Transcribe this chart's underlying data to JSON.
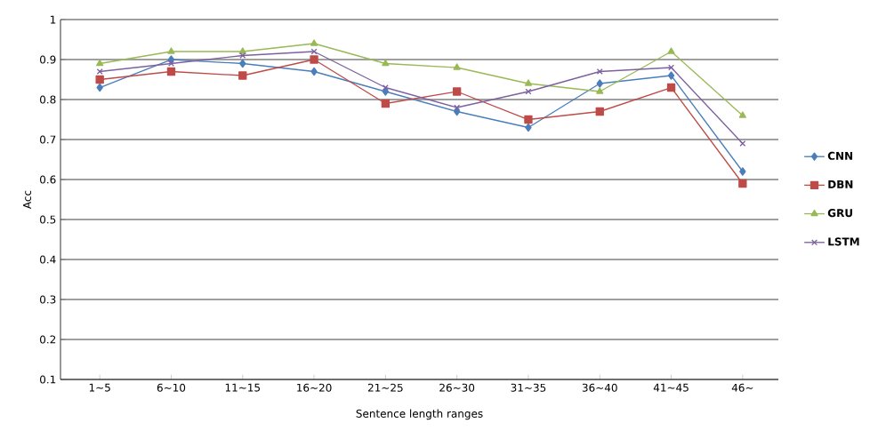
{
  "chart_data": {
    "type": "line",
    "xlabel": "Sentence length ranges",
    "ylabel": "Acc",
    "categories": [
      "1~5",
      "6~10",
      "11~15",
      "16~20",
      "21~25",
      "26~30",
      "31~35",
      "36~40",
      "41~45",
      "46~"
    ],
    "series": [
      {
        "name": "CNN",
        "color": "#4a7ebb",
        "marker": "diamond",
        "values": [
          0.83,
          0.9,
          0.89,
          0.87,
          0.82,
          0.77,
          0.73,
          0.84,
          0.86,
          0.62
        ]
      },
      {
        "name": "DBN",
        "color": "#be4b48",
        "marker": "square",
        "values": [
          0.85,
          0.87,
          0.86,
          0.9,
          0.79,
          0.82,
          0.75,
          0.77,
          0.83,
          0.59
        ]
      },
      {
        "name": "GRU",
        "color": "#98b954",
        "marker": "triangle",
        "values": [
          0.89,
          0.92,
          0.92,
          0.94,
          0.89,
          0.88,
          0.84,
          0.82,
          0.92,
          0.76
        ]
      },
      {
        "name": "LSTM",
        "color": "#7d60a0",
        "marker": "cross",
        "values": [
          0.87,
          0.89,
          0.91,
          0.92,
          0.83,
          0.78,
          0.82,
          0.87,
          0.88,
          0.69
        ]
      }
    ],
    "ylim": [
      0.1,
      1
    ],
    "yticks": [
      0.1,
      0.2,
      0.3,
      0.4,
      0.5,
      0.6,
      0.7,
      0.8,
      0.9,
      1
    ],
    "grid": "y",
    "legend": "right",
    "line_style": "solid"
  }
}
